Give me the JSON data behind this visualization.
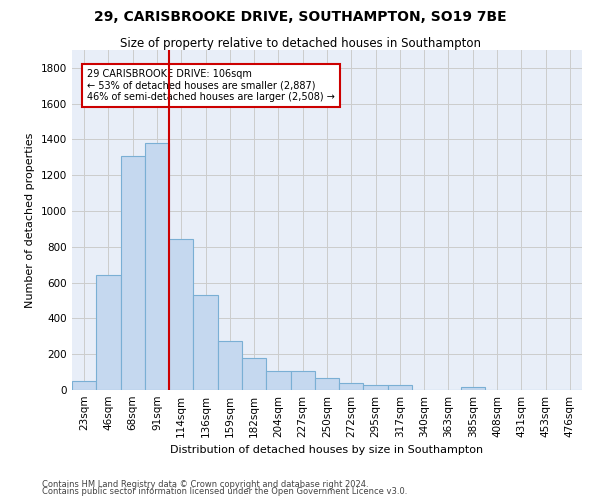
{
  "title_line1": "29, CARISBROOKE DRIVE, SOUTHAMPTON, SO19 7BE",
  "title_line2": "Size of property relative to detached houses in Southampton",
  "xlabel": "Distribution of detached houses by size in Southampton",
  "ylabel": "Number of detached properties",
  "categories": [
    "23sqm",
    "46sqm",
    "68sqm",
    "91sqm",
    "114sqm",
    "136sqm",
    "159sqm",
    "182sqm",
    "204sqm",
    "227sqm",
    "250sqm",
    "272sqm",
    "295sqm",
    "317sqm",
    "340sqm",
    "363sqm",
    "385sqm",
    "408sqm",
    "431sqm",
    "453sqm",
    "476sqm"
  ],
  "values": [
    50,
    640,
    1310,
    1380,
    845,
    530,
    275,
    180,
    105,
    105,
    65,
    40,
    30,
    30,
    0,
    0,
    18,
    0,
    0,
    0,
    0
  ],
  "bar_color": "#c5d8ef",
  "bar_edge_color": "#7aafd4",
  "annotation_line1": "29 CARISBROOKE DRIVE: 106sqm",
  "annotation_line2": "← 53% of detached houses are smaller (2,887)",
  "annotation_line3": "46% of semi-detached houses are larger (2,508) →",
  "annotation_box_color": "#ffffff",
  "annotation_box_edge_color": "#cc0000",
  "vline_color": "#cc0000",
  "vline_bar_index": 4,
  "ylim": [
    0,
    1900
  ],
  "yticks": [
    0,
    200,
    400,
    600,
    800,
    1000,
    1200,
    1400,
    1600,
    1800
  ],
  "grid_color": "#cccccc",
  "bg_color": "#e8eef8",
  "footer_line1": "Contains HM Land Registry data © Crown copyright and database right 2024.",
  "footer_line2": "Contains public sector information licensed under the Open Government Licence v3.0.",
  "title_fontsize": 10,
  "subtitle_fontsize": 8.5,
  "axis_label_fontsize": 8,
  "tick_fontsize": 7.5,
  "annotation_fontsize": 7,
  "footer_fontsize": 6
}
